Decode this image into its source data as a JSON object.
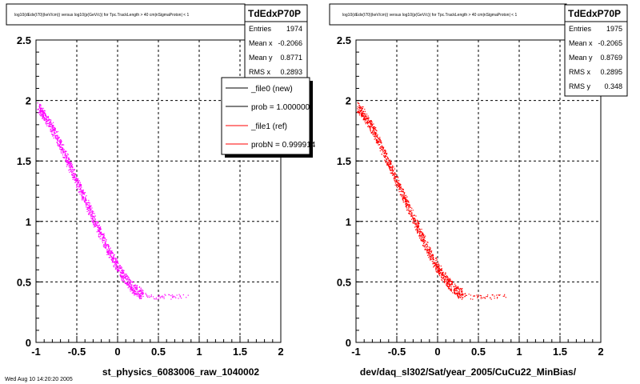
{
  "panels": [
    {
      "title": "log10(dEdx(I70)(keV/cm)) versus log10(p(GeV/c)) for Tpc.TrackLength > 40 cm|nSigmaProton| < 1",
      "stats": {
        "name": "TdEdxP70P",
        "rows": [
          {
            "label": "Entries",
            "value": "1974"
          },
          {
            "label": "Mean x",
            "value": "-0.2066"
          },
          {
            "label": "Mean y",
            "value": "0.8771"
          },
          {
            "label": "RMS x",
            "value": "0.2893"
          }
        ]
      },
      "legend": [
        {
          "label": "_file0 (new)",
          "color": "#000000"
        },
        {
          "label": "prob = 1.000000",
          "color": "#000000"
        },
        {
          "label": "_file1 (ref)",
          "color": "#ff0000"
        },
        {
          "label": "probN = 0.999914",
          "color": "#ff0000"
        }
      ],
      "xlabel": "st_physics_6083006_raw_1040002"
    },
    {
      "title": "log10(dEdx(I70)(keV/cm)) versus log10(p(GeV/c)) for Tpc.TrackLength > 40 cm|nSigmaProton| < 1",
      "stats": {
        "name": "TdEdxP70P",
        "rows": [
          {
            "label": "Entries",
            "value": "1975"
          },
          {
            "label": "Mean x",
            "value": "-0.2065"
          },
          {
            "label": "Mean y",
            "value": "0.8769"
          },
          {
            "label": "RMS x",
            "value": "0.2895"
          },
          {
            "label": "RMS y",
            "value": "0.348"
          }
        ]
      },
      "xlabel": "dev/daq_sl302/Sat/year_2005/CuCu22_MinBias/"
    }
  ],
  "footer_text": "Wed Aug 10 14:20:20 2005",
  "colors": {
    "left_points": "#ff00ff",
    "right_points": "#ff0000",
    "grid": "#000000"
  },
  "chart_data": [
    {
      "type": "scatter",
      "title": "log10(dEdx(I70)(keV/cm)) versus log10(p(GeV/c)) for Tpc.TrackLength > 40 cm|nSigmaProton| < 1",
      "xlabel": "st_physics_6083006_raw_1040002",
      "ylabel": "",
      "xlim": [
        -1,
        2
      ],
      "ylim": [
        0,
        2.5
      ],
      "xticks": [
        "-1",
        "-0.5",
        "0",
        "0.5",
        "1",
        "1.5",
        "2"
      ],
      "yticks": [
        "0",
        "0.5",
        "1",
        "1.5",
        "2",
        "2.5"
      ],
      "grid": true,
      "legend_position": "top-right",
      "series": [
        {
          "name": "_file0 (new)",
          "color": "#ff00ff",
          "x": [
            -0.98,
            -0.9,
            -0.8,
            -0.7,
            -0.6,
            -0.5,
            -0.4,
            -0.3,
            -0.2,
            -0.1,
            0.0,
            0.1,
            0.2,
            0.3,
            0.4,
            0.5,
            0.6,
            0.7,
            0.85
          ],
          "y": [
            1.95,
            1.88,
            1.77,
            1.63,
            1.48,
            1.33,
            1.18,
            1.03,
            0.88,
            0.74,
            0.62,
            0.52,
            0.44,
            0.4,
            0.38,
            0.38,
            0.38,
            0.38,
            0.38
          ]
        }
      ]
    },
    {
      "type": "scatter",
      "title": "log10(dEdx(I70)(keV/cm)) versus log10(p(GeV/c)) for Tpc.TrackLength > 40 cm|nSigmaProton| < 1",
      "xlabel": "dev/daq_sl302/Sat/year_2005/CuCu22_MinBias/",
      "ylabel": "",
      "xlim": [
        -1,
        2
      ],
      "ylim": [
        0,
        2.5
      ],
      "xticks": [
        "-1",
        "-0.5",
        "0",
        "0.5",
        "1",
        "1.5",
        "2"
      ],
      "yticks": [
        "0",
        "0.5",
        "1",
        "1.5",
        "2",
        "2.5"
      ],
      "grid": true,
      "series": [
        {
          "name": "",
          "color": "#ff0000",
          "x": [
            -0.98,
            -0.9,
            -0.8,
            -0.7,
            -0.6,
            -0.5,
            -0.4,
            -0.3,
            -0.2,
            -0.1,
            0.0,
            0.1,
            0.2,
            0.3,
            0.4,
            0.5,
            0.6,
            0.7,
            0.85
          ],
          "y": [
            1.95,
            1.88,
            1.77,
            1.63,
            1.48,
            1.33,
            1.18,
            1.03,
            0.88,
            0.74,
            0.62,
            0.52,
            0.44,
            0.4,
            0.38,
            0.38,
            0.38,
            0.38,
            0.38
          ]
        }
      ]
    }
  ]
}
